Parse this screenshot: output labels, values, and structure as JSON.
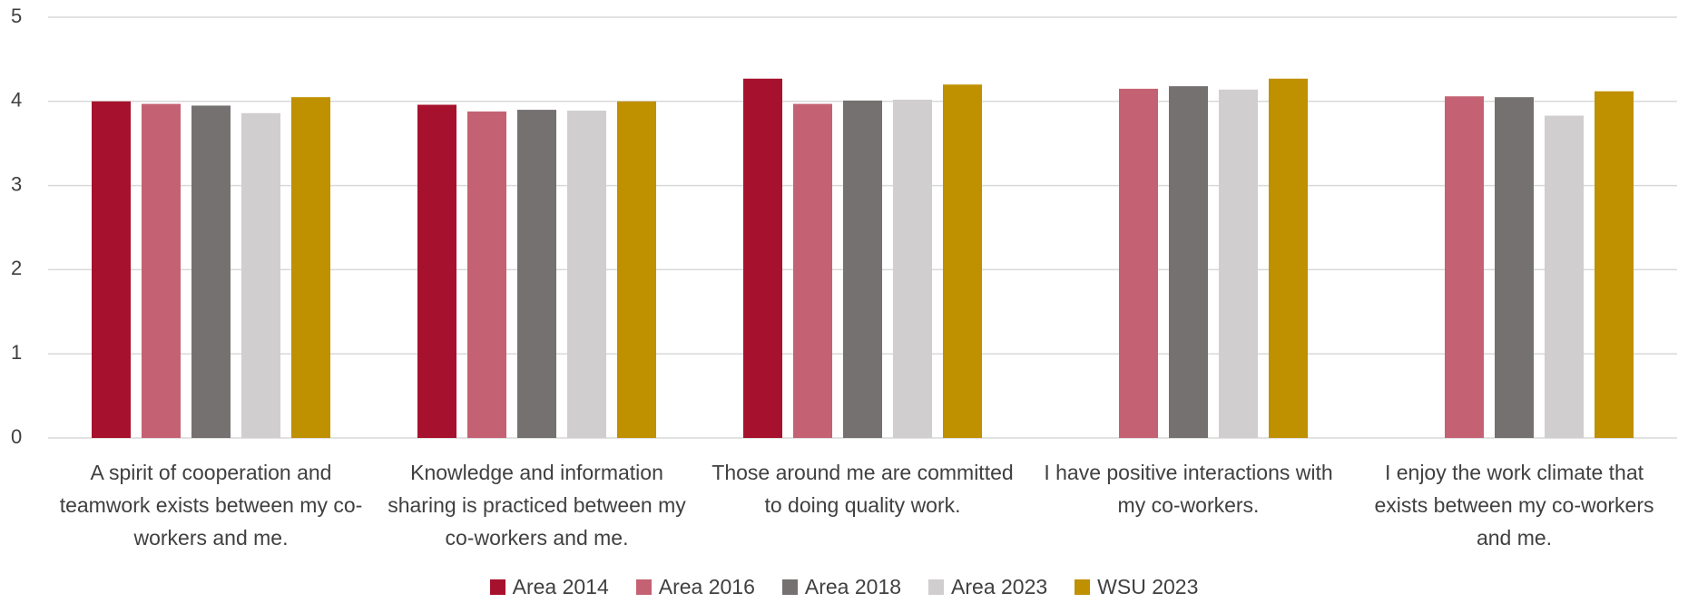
{
  "chart_data": {
    "type": "bar",
    "categories": [
      "A spirit of cooperation and teamwork exists between my co-workers and me.",
      "Knowledge and information sharing is practiced between my co-workers and me.",
      "Those around me are committed to doing quality work.",
      "I have positive interactions with my co-workers.",
      "I enjoy the work climate that exists between my co-workers and me."
    ],
    "series": [
      {
        "name": "Area 2014",
        "color": "#a6122d",
        "values": [
          4.0,
          3.96,
          4.27,
          null,
          null
        ]
      },
      {
        "name": "Area 2016",
        "color": "#c46273",
        "values": [
          3.97,
          3.88,
          3.97,
          4.15,
          4.06
        ]
      },
      {
        "name": "Area 2018",
        "color": "#757171",
        "values": [
          3.95,
          3.9,
          4.01,
          4.18,
          4.05
        ]
      },
      {
        "name": "Area 2023",
        "color": "#d0cecf",
        "values": [
          3.86,
          3.89,
          4.02,
          4.14,
          3.83
        ]
      },
      {
        "name": "WSU 2023",
        "color": "#bf9000",
        "values": [
          4.05,
          4.0,
          4.2,
          4.27,
          4.12
        ]
      }
    ],
    "ylim": [
      0,
      5
    ],
    "yticks": [
      0,
      1,
      2,
      3,
      4,
      5
    ],
    "grid": true,
    "legend": "bottom"
  }
}
